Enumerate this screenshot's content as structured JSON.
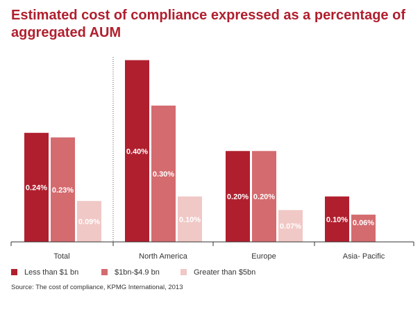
{
  "chart_data": {
    "type": "bar",
    "title": "Estimated cost of compliance expressed as a percentage of aggregated AUM",
    "categories": [
      "Total",
      "North America",
      "Europe",
      "Asia- Pacific"
    ],
    "series": [
      {
        "name": "Less than $1 bn",
        "values": [
          0.24,
          0.4,
          0.2,
          0.1
        ],
        "labels": [
          "0.24%",
          "0.40%",
          "0.20%",
          "0.10%"
        ],
        "color": "#b01f2e",
        "label_color": "#ffffff"
      },
      {
        "name": "$1bn-$4.9 bn",
        "values": [
          0.23,
          0.3,
          0.2,
          0.06
        ],
        "labels": [
          "0.23%",
          "0.30%",
          "0.20%",
          "0.06%"
        ],
        "color": "#d46b6f",
        "label_color": "#ffffff"
      },
      {
        "name": "Greater than $5bn",
        "values": [
          0.09,
          0.1,
          0.07,
          null
        ],
        "labels": [
          "0.09%",
          "0.10%",
          "0.07%",
          ""
        ],
        "color": "#f0c8c6",
        "label_color": "#ffffff"
      }
    ],
    "ylim": [
      0,
      0.41
    ],
    "xlabel": "",
    "ylabel": "",
    "grid": false,
    "legend_position": "bottom"
  },
  "source": "Source: The cost of compliance, KPMG International, 2013",
  "colors": {
    "title": "#b01f2e",
    "axis": "#333333",
    "divider": "#555555"
  }
}
